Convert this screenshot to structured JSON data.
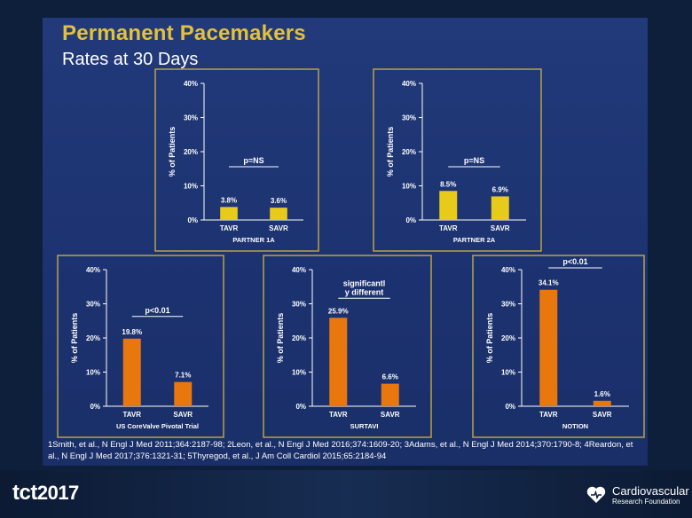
{
  "slide": {
    "title": "Permanent Pacemakers",
    "subtitle": "Rates at 30 Days",
    "footer_logo": "tct2017",
    "footer_logo_main": "tct",
    "footer_logo_year": "2017",
    "org_line1": "Cardiovascular",
    "org_line2": "Research Foundation",
    "references": "1Smith, et al., N Engl J Med 2011;364:2187-98; 2Leon, et al., N Engl J Med 2016;374:1609-20; 3Adams, et al., N Engl J Med 2014;370:1790-8; 4Reardon, et al., N Engl J Med 2017;376:1321-31; 5Thyregod, et al., J Am Coll Cardiol 2015;65:2184-94"
  },
  "colors": {
    "background": "#1c3270",
    "title": "#e3c13a",
    "panel_border": "#b8a24a",
    "yellow_bar": "#e8cb1a",
    "orange_bar": "#e8780e",
    "text": "#ffffff"
  },
  "chart_data": [
    {
      "type": "bar",
      "title": "PARTNER 1A",
      "categories": [
        "TAVR",
        "SAVR"
      ],
      "values": [
        3.8,
        3.6
      ],
      "value_labels": [
        "3.8%",
        "3.6%"
      ],
      "annotation": "p=NS",
      "ylabel": "% of Patients",
      "yticks": [
        "0%",
        "10%",
        "20%",
        "30%",
        "40%"
      ],
      "ylim": [
        0,
        40
      ],
      "bar_color": "#e8cb1a"
    },
    {
      "type": "bar",
      "title": "PARTNER 2A",
      "categories": [
        "TAVR",
        "SAVR"
      ],
      "values": [
        8.5,
        6.9
      ],
      "value_labels": [
        "8.5%",
        "6.9%"
      ],
      "annotation": "p=NS",
      "ylabel": "% of Patients",
      "yticks": [
        "0%",
        "10%",
        "20%",
        "30%",
        "40%"
      ],
      "ylim": [
        0,
        40
      ],
      "bar_color": "#e8cb1a"
    },
    {
      "type": "bar",
      "title": "US CoreValve Pivotal Trial",
      "categories": [
        "TAVR",
        "SAVR"
      ],
      "values": [
        19.8,
        7.1
      ],
      "value_labels": [
        "19.8%",
        "7.1%"
      ],
      "annotation": "p<0.01",
      "ylabel": "% of Patients",
      "yticks": [
        "0%",
        "10%",
        "20%",
        "30%",
        "40%"
      ],
      "ylim": [
        0,
        40
      ],
      "bar_color": "#e8780e"
    },
    {
      "type": "bar",
      "title": "SURTAVI",
      "categories": [
        "TAVR",
        "SAVR"
      ],
      "values": [
        25.9,
        6.6
      ],
      "value_labels": [
        "25.9%",
        "6.6%"
      ],
      "annotation": "significantl\ny different",
      "ylabel": "% of Patients",
      "yticks": [
        "0%",
        "10%",
        "20%",
        "30%",
        "40%"
      ],
      "ylim": [
        0,
        40
      ],
      "bar_color": "#e8780e"
    },
    {
      "type": "bar",
      "title": "NOTION",
      "categories": [
        "TAVR",
        "SAVR"
      ],
      "values": [
        34.1,
        1.6
      ],
      "value_labels": [
        "34.1%",
        "1.6%"
      ],
      "annotation": "p<0.01",
      "ylabel": "% of Patients",
      "yticks": [
        "0%",
        "10%",
        "20%",
        "30%",
        "40%"
      ],
      "ylim": [
        0,
        40
      ],
      "bar_color": "#e8780e"
    }
  ]
}
